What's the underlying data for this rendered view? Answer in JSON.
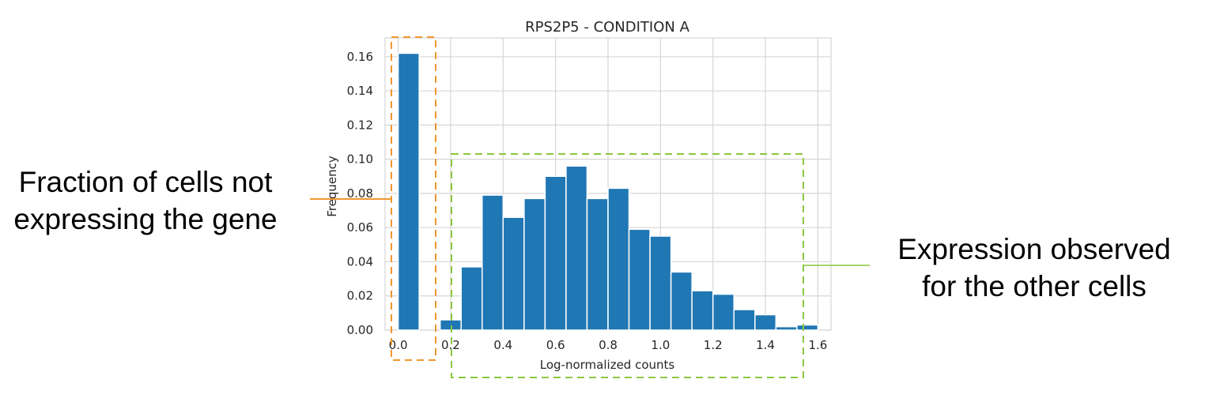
{
  "chart_data": {
    "type": "bar",
    "title": "RPS2P5 - CONDITION A",
    "xlabel": "Log-normalized counts",
    "ylabel": "Frequency",
    "xlim": [
      -0.05,
      1.65
    ],
    "ylim": [
      0,
      0.171
    ],
    "xticks": [
      "0.0",
      "0.2",
      "0.4",
      "0.6",
      "0.8",
      "1.0",
      "1.2",
      "1.4",
      "1.6"
    ],
    "yticks": [
      "0.00",
      "0.02",
      "0.04",
      "0.06",
      "0.08",
      "0.10",
      "0.12",
      "0.14",
      "0.16"
    ],
    "grid": true,
    "bar_color": "#1f77b4",
    "bins": [
      {
        "x0": 0.0,
        "x1": 0.08,
        "value": 0.162
      },
      {
        "x0": 0.16,
        "x1": 0.24,
        "value": 0.006
      },
      {
        "x0": 0.24,
        "x1": 0.32,
        "value": 0.037
      },
      {
        "x0": 0.32,
        "x1": 0.4,
        "value": 0.079
      },
      {
        "x0": 0.4,
        "x1": 0.48,
        "value": 0.066
      },
      {
        "x0": 0.48,
        "x1": 0.56,
        "value": 0.077
      },
      {
        "x0": 0.56,
        "x1": 0.64,
        "value": 0.09
      },
      {
        "x0": 0.64,
        "x1": 0.72,
        "value": 0.096
      },
      {
        "x0": 0.72,
        "x1": 0.8,
        "value": 0.077
      },
      {
        "x0": 0.8,
        "x1": 0.88,
        "value": 0.083
      },
      {
        "x0": 0.88,
        "x1": 0.96,
        "value": 0.059
      },
      {
        "x0": 0.96,
        "x1": 1.04,
        "value": 0.055
      },
      {
        "x0": 1.04,
        "x1": 1.12,
        "value": 0.034
      },
      {
        "x0": 1.12,
        "x1": 1.2,
        "value": 0.023
      },
      {
        "x0": 1.2,
        "x1": 1.28,
        "value": 0.021
      },
      {
        "x0": 1.28,
        "x1": 1.36,
        "value": 0.012
      },
      {
        "x0": 1.36,
        "x1": 1.44,
        "value": 0.009
      },
      {
        "x0": 1.44,
        "x1": 1.52,
        "value": 0.002
      },
      {
        "x0": 1.52,
        "x1": 1.6,
        "value": 0.003
      }
    ]
  },
  "annotations": {
    "left": {
      "line1": "Fraction of cells not",
      "line2": "expressing the gene",
      "color": "#f0962e"
    },
    "right": {
      "line1": "Expression observed",
      "line2": "for the other cells",
      "color": "#8cc63f"
    }
  }
}
